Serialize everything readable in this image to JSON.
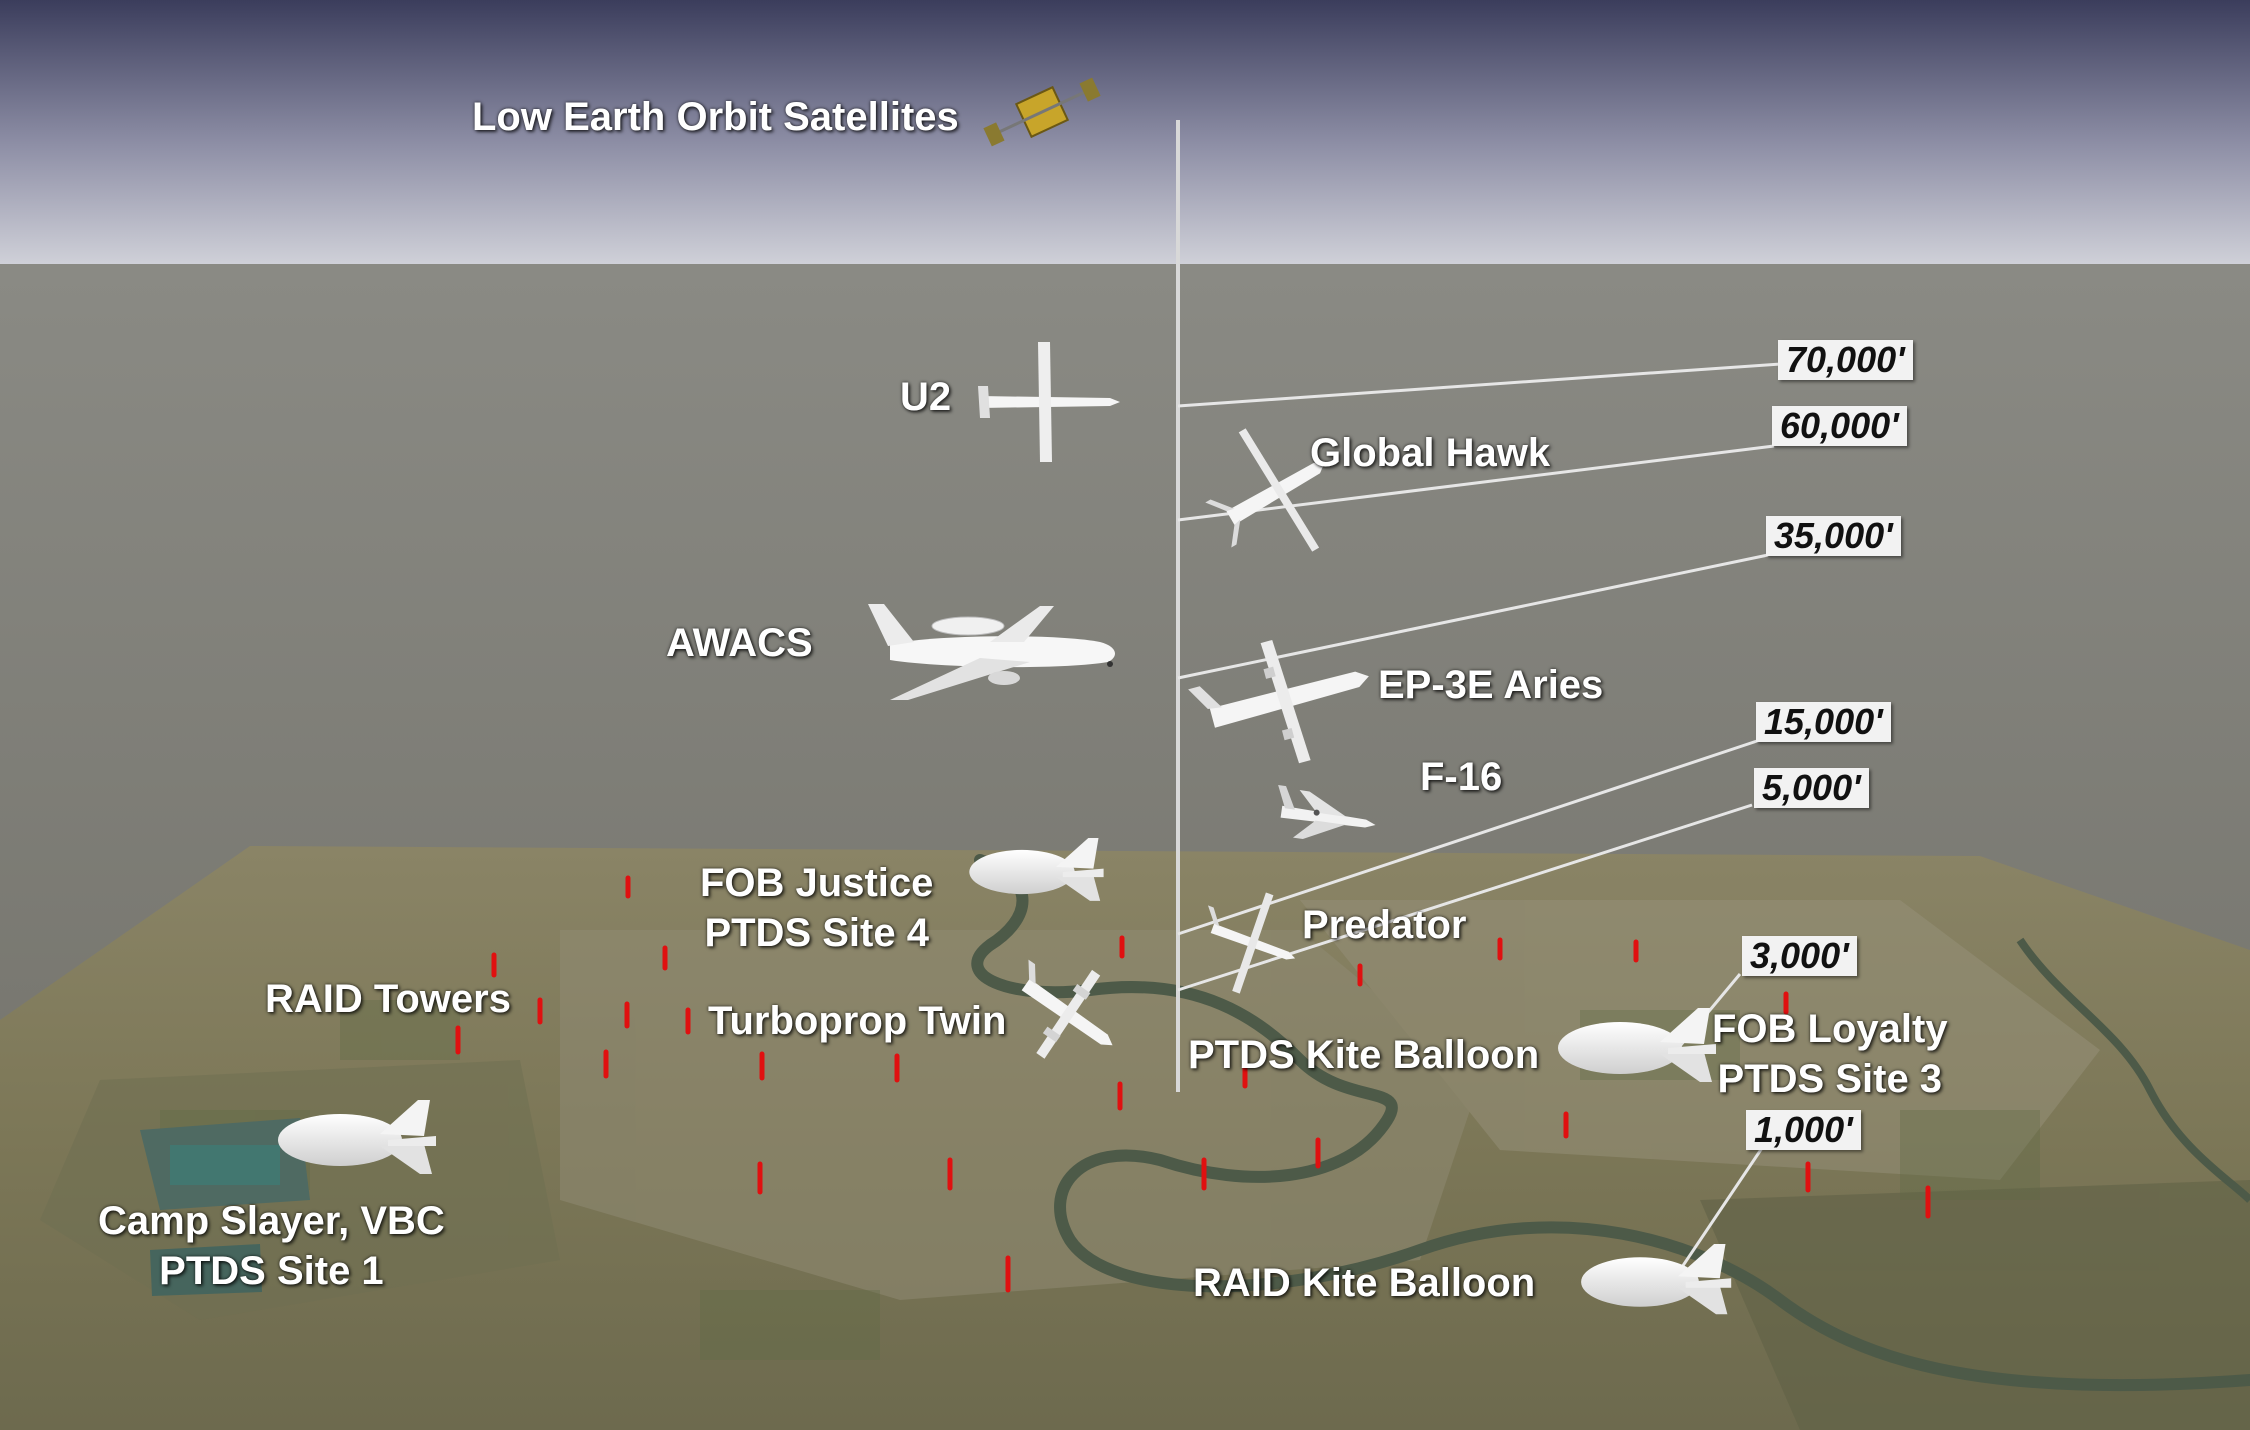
{
  "satellites_label": "Low Earth Orbit Satellites",
  "aircraft": {
    "u2": "U2",
    "global_hawk": "Global Hawk",
    "awacs": "AWACS",
    "ep3e": "EP-3E Aries",
    "f16": "F-16",
    "predator": "Predator",
    "turboprop": "Turboprop Twin"
  },
  "ground": {
    "fob_justice": "FOB Justice\nPTDS Site 4",
    "raid_towers": "RAID Towers",
    "ptds_kite": "PTDS Kite Balloon",
    "fob_loyalty": "FOB Loyalty\nPTDS Site 3",
    "camp_slayer": "Camp Slayer, VBC\nPTDS Site 1",
    "raid_kite": "RAID Kite Balloon"
  },
  "altitudes": [
    "70,000'",
    "60,000'",
    "35,000'",
    "15,000'",
    "5,000'",
    "3,000'",
    "1,000'"
  ],
  "colors": {
    "sky_top": "#3b3d5c",
    "sky_bottom": "#c9c9d4",
    "haze": "#7b7b72",
    "tower": "#e01010",
    "label": "#ffffff"
  }
}
